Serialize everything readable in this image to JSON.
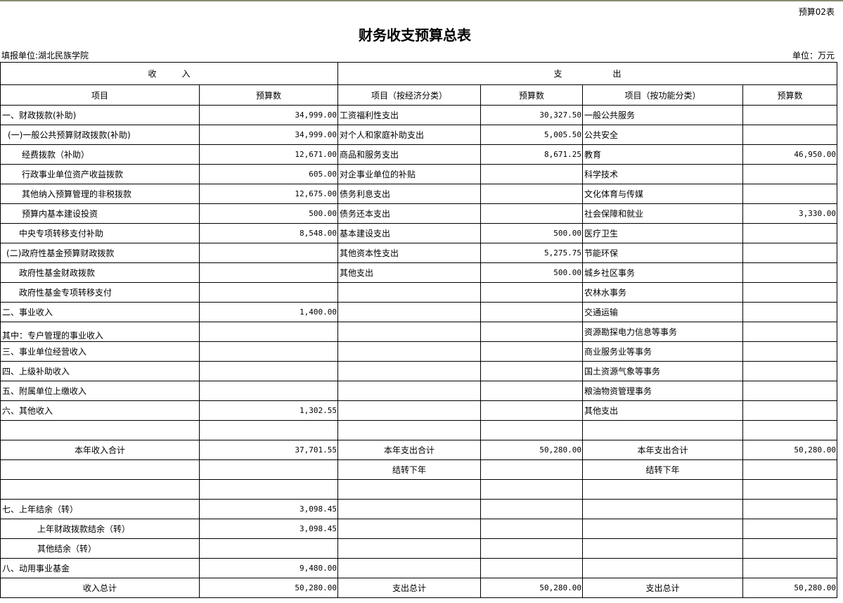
{
  "form_no": "预算02表",
  "title": "财务收支预算总表",
  "unit_left": "填报单位:湖北民族学院",
  "unit_right": "单位：万元",
  "sections": {
    "income": "收　　　入",
    "expense": "支　　　　　　出"
  },
  "headers": [
    "项目",
    "预算数",
    "项目（按经济分类）",
    "预算数",
    "项目（按功能分类）",
    "预算数"
  ],
  "rows": [
    [
      "一、财政拨款(补助)",
      "34,999.00",
      "工资福利性支出",
      "30,327.50",
      "一般公共服务",
      ""
    ],
    [
      "(一)一般公共预算财政拨款(补助)",
      "34,999.00",
      "对个人和家庭补助支出",
      "5,005.50",
      "公共安全",
      ""
    ],
    [
      "经费拨款（补助）",
      "12,671.00",
      "商品和服务支出",
      "8,671.25",
      "教育",
      "46,950.00"
    ],
    [
      "行政事业单位资产收益拨款",
      "605.00",
      "对企事业单位的补贴",
      "",
      "科学技术",
      ""
    ],
    [
      "其他纳入预算管理的非税拨款",
      "12,675.00",
      "债务利息支出",
      "",
      "文化体育与传媒",
      ""
    ],
    [
      "预算内基本建设投资",
      "500.00",
      "债务还本支出",
      "",
      "社会保障和就业",
      "3,330.00"
    ],
    [
      "中央专项转移支付补助",
      "8,548.00",
      "基本建设支出",
      "500.00",
      "医疗卫生",
      ""
    ],
    [
      "(二)政府性基金预算财政拨款",
      "",
      "其他资本性支出",
      "5,275.75",
      "节能环保",
      ""
    ],
    [
      "政府性基金财政拨款",
      "",
      "其他支出",
      "500.00",
      "城乡社区事务",
      ""
    ],
    [
      "政府性基金专项转移支付",
      "",
      "",
      "",
      "农林水事务",
      ""
    ],
    [
      "二、事业收入",
      "1,400.00",
      "",
      "",
      "交通运输",
      ""
    ],
    [
      "其中：专户管理的事业收入",
      "",
      "",
      "",
      "资源勘探电力信息等事务",
      ""
    ],
    [
      "三、事业单位经营收入",
      "",
      "",
      "",
      "商业服务业等事务",
      ""
    ],
    [
      "四、上级补助收入",
      "",
      "",
      "",
      "国土资源气象等事务",
      ""
    ],
    [
      "五、附属单位上缴收入",
      "",
      "",
      "",
      "粮油物资管理事务",
      ""
    ],
    [
      "六、其他收入",
      "1,302.55",
      "",
      "",
      "其他支出",
      ""
    ],
    [
      "",
      "",
      "",
      "",
      "",
      ""
    ],
    [
      "本年收入合计",
      "37,701.55",
      "本年支出合计",
      "50,280.00",
      "本年支出合计",
      "50,280.00"
    ],
    [
      "",
      "",
      "结转下年",
      "",
      "结转下年",
      ""
    ],
    [
      "",
      "",
      "",
      "",
      "",
      ""
    ],
    [
      "七、上年结余（转）",
      "3,098.45",
      "",
      "",
      "",
      ""
    ],
    [
      "上年财政拨款结余（转）",
      "3,098.45",
      "",
      "",
      "",
      ""
    ],
    [
      "其他结余（转）",
      "",
      "",
      "",
      "",
      ""
    ],
    [
      "八、动用事业基金",
      "9,480.00",
      "",
      "",
      "",
      ""
    ],
    [
      "收入总计",
      "50,280.00",
      "支出总计",
      "50,280.00",
      "支出总计",
      "50,280.00"
    ]
  ]
}
